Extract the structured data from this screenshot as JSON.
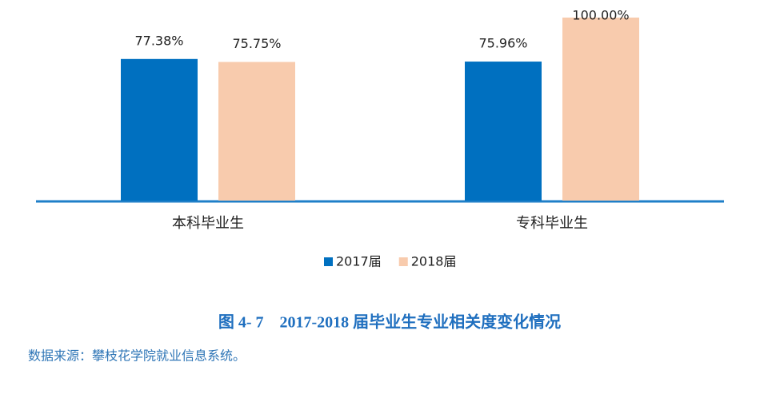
{
  "chart_data": {
    "type": "bar",
    "title": "图 4- 7　2017-2018 届毕业生专业相关度变化情况",
    "source": "数据来源：攀枝花学院就业信息系统。",
    "categories": [
      "本科毕业生",
      "专科毕业生"
    ],
    "series": [
      {
        "name": "2017届",
        "color": "#0070c0",
        "values": [
          77.38,
          75.96
        ],
        "value_labels": [
          "77.38%",
          "75.96%"
        ]
      },
      {
        "name": "2018届",
        "color": "#f8cbad",
        "values": [
          75.75,
          100.0
        ],
        "value_labels": [
          "75.75%",
          "100.00%"
        ]
      }
    ]
  }
}
